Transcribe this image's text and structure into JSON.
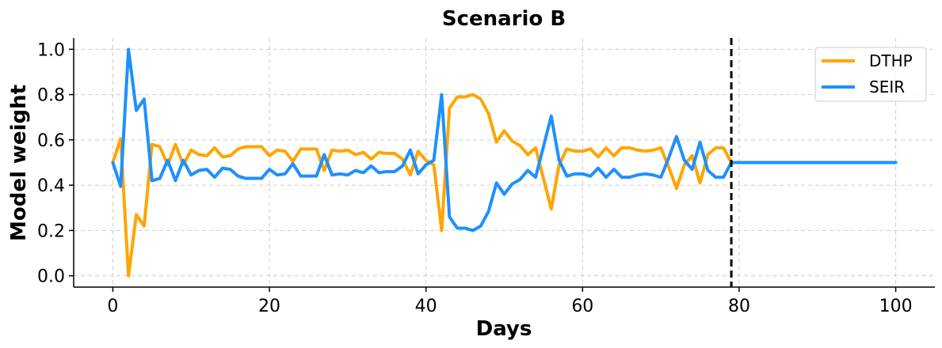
{
  "chart_data": {
    "type": "line",
    "title": "Scenario B",
    "xlabel": "Days",
    "ylabel": "Model weight",
    "xlim": [
      -5,
      105
    ],
    "ylim": [
      -0.05,
      1.05
    ],
    "xticks": [
      0,
      20,
      40,
      60,
      80,
      100
    ],
    "xtick_labels": [
      "0",
      "20",
      "40",
      "60",
      "80",
      "100"
    ],
    "yticks": [
      0.0,
      0.2,
      0.4,
      0.6,
      0.8,
      1.0
    ],
    "ytick_labels": [
      "0.0",
      "0.2",
      "0.4",
      "0.6",
      "0.8",
      "1.0"
    ],
    "grid": true,
    "legend_position": "top-right",
    "vline_x": 79,
    "series": [
      {
        "name": "DTHP",
        "color": "#FFA500",
        "x": [
          0,
          1,
          2,
          3,
          4,
          5,
          6,
          7,
          8,
          9,
          10,
          11,
          12,
          13,
          14,
          15,
          16,
          17,
          18,
          19,
          20,
          21,
          22,
          23,
          24,
          25,
          26,
          27,
          28,
          29,
          30,
          31,
          32,
          33,
          34,
          35,
          36,
          37,
          38,
          39,
          40,
          41,
          42,
          43,
          44,
          45,
          46,
          47,
          48,
          49,
          50,
          51,
          52,
          53,
          54,
          55,
          56,
          57,
          58,
          59,
          60,
          61,
          62,
          63,
          64,
          65,
          66,
          67,
          68,
          69,
          70,
          71,
          72,
          73,
          74,
          75,
          76,
          77,
          78,
          79,
          100
        ],
        "y": [
          0.5,
          0.605,
          0.0,
          0.27,
          0.22,
          0.58,
          0.57,
          0.49,
          0.58,
          0.49,
          0.555,
          0.535,
          0.53,
          0.565,
          0.525,
          0.53,
          0.56,
          0.57,
          0.57,
          0.57,
          0.53,
          0.555,
          0.55,
          0.505,
          0.56,
          0.56,
          0.56,
          0.465,
          0.555,
          0.55,
          0.555,
          0.535,
          0.545,
          0.515,
          0.545,
          0.54,
          0.54,
          0.515,
          0.445,
          0.55,
          0.51,
          0.49,
          0.2,
          0.74,
          0.79,
          0.79,
          0.8,
          0.78,
          0.715,
          0.59,
          0.64,
          0.595,
          0.575,
          0.535,
          0.565,
          0.43,
          0.295,
          0.49,
          0.56,
          0.55,
          0.55,
          0.56,
          0.525,
          0.565,
          0.53,
          0.565,
          0.565,
          0.555,
          0.55,
          0.555,
          0.565,
          0.48,
          0.385,
          0.49,
          0.53,
          0.41,
          0.535,
          0.565,
          0.565,
          0.5,
          0.5
        ]
      },
      {
        "name": "SEIR",
        "color": "#1E90FF",
        "x": [
          0,
          1,
          2,
          3,
          4,
          5,
          6,
          7,
          8,
          9,
          10,
          11,
          12,
          13,
          14,
          15,
          16,
          17,
          18,
          19,
          20,
          21,
          22,
          23,
          24,
          25,
          26,
          27,
          28,
          29,
          30,
          31,
          32,
          33,
          34,
          35,
          36,
          37,
          38,
          39,
          40,
          41,
          42,
          43,
          44,
          45,
          46,
          47,
          48,
          49,
          50,
          51,
          52,
          53,
          54,
          55,
          56,
          57,
          58,
          59,
          60,
          61,
          62,
          63,
          64,
          65,
          66,
          67,
          68,
          69,
          70,
          71,
          72,
          73,
          74,
          75,
          76,
          77,
          78,
          79,
          100
        ],
        "y": [
          0.5,
          0.395,
          1.0,
          0.73,
          0.78,
          0.42,
          0.43,
          0.51,
          0.42,
          0.51,
          0.445,
          0.465,
          0.47,
          0.435,
          0.475,
          0.47,
          0.44,
          0.43,
          0.43,
          0.43,
          0.47,
          0.445,
          0.45,
          0.495,
          0.44,
          0.44,
          0.44,
          0.535,
          0.445,
          0.45,
          0.445,
          0.465,
          0.455,
          0.485,
          0.455,
          0.46,
          0.46,
          0.485,
          0.555,
          0.45,
          0.49,
          0.51,
          0.8,
          0.26,
          0.21,
          0.21,
          0.2,
          0.22,
          0.285,
          0.41,
          0.36,
          0.405,
          0.425,
          0.465,
          0.435,
          0.57,
          0.705,
          0.51,
          0.44,
          0.45,
          0.45,
          0.44,
          0.475,
          0.435,
          0.47,
          0.435,
          0.435,
          0.445,
          0.45,
          0.445,
          0.435,
          0.52,
          0.615,
          0.51,
          0.47,
          0.59,
          0.465,
          0.435,
          0.435,
          0.5,
          0.5
        ]
      }
    ]
  }
}
